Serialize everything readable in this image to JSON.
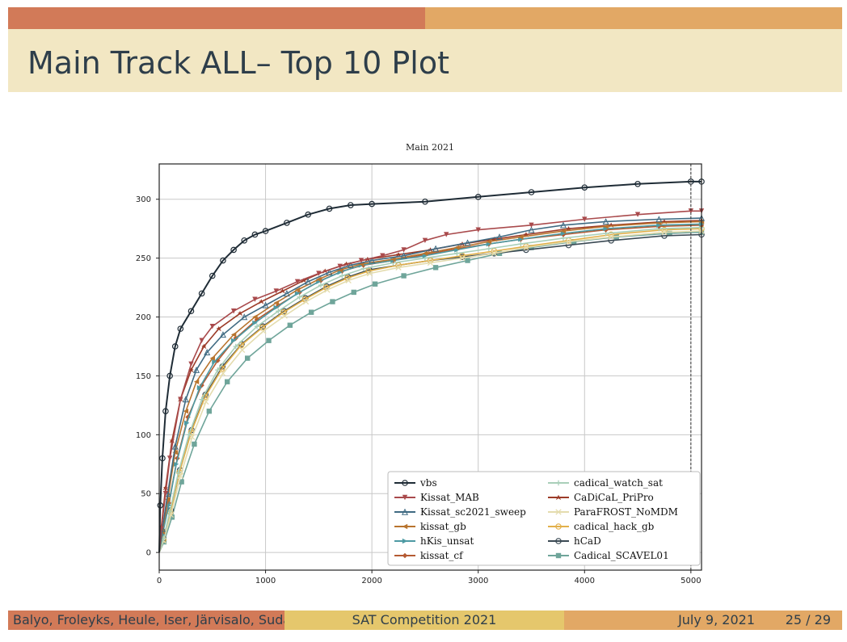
{
  "slide": {
    "title": "Main Track ALL– Top 10 Plot",
    "footer_authors": "Balyo, Froleyks, Heule, Iser, Järvisalo, Suda",
    "footer_event": "SAT Competition 2021",
    "footer_date": "July 9, 2021",
    "footer_page": "25 / 29"
  },
  "chart_data": {
    "type": "line",
    "title": "Main 2021",
    "xlabel": "",
    "ylabel": "",
    "xlim": [
      0,
      5100
    ],
    "ylim": [
      -15,
      330
    ],
    "x_ticks": [
      0,
      1000,
      2000,
      3000,
      4000,
      5000
    ],
    "y_ticks": [
      0,
      50,
      100,
      150,
      200,
      250,
      300
    ],
    "grid": true,
    "timeout_line_x": 5000,
    "legend_position": "lower-right",
    "series": [
      {
        "name": "vbs",
        "color": "#1f2c36",
        "marker": "o",
        "points": [
          [
            0,
            0
          ],
          [
            10,
            40
          ],
          [
            30,
            80
          ],
          [
            60,
            120
          ],
          [
            100,
            150
          ],
          [
            150,
            175
          ],
          [
            200,
            190
          ],
          [
            300,
            205
          ],
          [
            400,
            220
          ],
          [
            500,
            235
          ],
          [
            600,
            248
          ],
          [
            700,
            257
          ],
          [
            800,
            265
          ],
          [
            900,
            270
          ],
          [
            1000,
            273
          ],
          [
            1200,
            280
          ],
          [
            1400,
            287
          ],
          [
            1600,
            292
          ],
          [
            1800,
            295
          ],
          [
            2000,
            296
          ],
          [
            2500,
            298
          ],
          [
            3000,
            302
          ],
          [
            3500,
            306
          ],
          [
            4000,
            310
          ],
          [
            4500,
            313
          ],
          [
            5000,
            315
          ],
          [
            5100,
            315
          ]
        ]
      },
      {
        "name": "Kissat_MAB",
        "color": "#a94a4c",
        "marker": "v",
        "points": [
          [
            0,
            0
          ],
          [
            20,
            20
          ],
          [
            60,
            50
          ],
          [
            100,
            80
          ],
          [
            200,
            130
          ],
          [
            300,
            160
          ],
          [
            400,
            180
          ],
          [
            500,
            192
          ],
          [
            700,
            205
          ],
          [
            900,
            215
          ],
          [
            1100,
            222
          ],
          [
            1300,
            230
          ],
          [
            1500,
            237
          ],
          [
            1700,
            243
          ],
          [
            1900,
            248
          ],
          [
            2100,
            252
          ],
          [
            2300,
            257
          ],
          [
            2500,
            265
          ],
          [
            2700,
            270
          ],
          [
            3000,
            274
          ],
          [
            3500,
            278
          ],
          [
            4000,
            283
          ],
          [
            4500,
            287
          ],
          [
            5000,
            290
          ],
          [
            5100,
            290
          ]
        ]
      },
      {
        "name": "Kissat_sc2021_sweep",
        "color": "#3f6a82",
        "marker": "^",
        "points": [
          [
            0,
            0
          ],
          [
            30,
            20
          ],
          [
            80,
            50
          ],
          [
            150,
            90
          ],
          [
            250,
            130
          ],
          [
            350,
            155
          ],
          [
            450,
            170
          ],
          [
            600,
            185
          ],
          [
            800,
            200
          ],
          [
            1000,
            210
          ],
          [
            1200,
            220
          ],
          [
            1400,
            230
          ],
          [
            1600,
            238
          ],
          [
            1800,
            244
          ],
          [
            2000,
            248
          ],
          [
            2300,
            252
          ],
          [
            2600,
            258
          ],
          [
            2900,
            263
          ],
          [
            3200,
            268
          ],
          [
            3500,
            274
          ],
          [
            3800,
            278
          ],
          [
            4200,
            281
          ],
          [
            4700,
            283
          ],
          [
            5100,
            284
          ]
        ]
      },
      {
        "name": "kissat_gb",
        "color": "#b8742e",
        "marker": "<",
        "points": [
          [
            0,
            0
          ],
          [
            30,
            18
          ],
          [
            80,
            45
          ],
          [
            150,
            85
          ],
          [
            250,
            120
          ],
          [
            350,
            145
          ],
          [
            500,
            165
          ],
          [
            700,
            185
          ],
          [
            900,
            200
          ],
          [
            1100,
            212
          ],
          [
            1300,
            223
          ],
          [
            1500,
            232
          ],
          [
            1700,
            240
          ],
          [
            1900,
            245
          ],
          [
            2200,
            249
          ],
          [
            2500,
            254
          ],
          [
            2800,
            259
          ],
          [
            3100,
            264
          ],
          [
            3400,
            268
          ],
          [
            3800,
            273
          ],
          [
            4200,
            277
          ],
          [
            4700,
            280
          ],
          [
            5100,
            281
          ]
        ]
      },
      {
        "name": "hKis_unsat",
        "color": "#4d9aa3",
        "marker": ">",
        "points": [
          [
            0,
            0
          ],
          [
            30,
            15
          ],
          [
            90,
            40
          ],
          [
            160,
            75
          ],
          [
            260,
            110
          ],
          [
            380,
            140
          ],
          [
            520,
            162
          ],
          [
            700,
            180
          ],
          [
            900,
            195
          ],
          [
            1100,
            208
          ],
          [
            1300,
            220
          ],
          [
            1500,
            230
          ],
          [
            1700,
            238
          ],
          [
            1900,
            244
          ],
          [
            2200,
            248
          ],
          [
            2500,
            252
          ],
          [
            2800,
            257
          ],
          [
            3100,
            262
          ],
          [
            3400,
            266
          ],
          [
            3800,
            271
          ],
          [
            4200,
            275
          ],
          [
            4700,
            278
          ],
          [
            5100,
            279
          ]
        ]
      },
      {
        "name": "kissat_cf",
        "color": "#b45a32",
        "marker": "D",
        "points": [
          [
            0,
            0
          ],
          [
            30,
            16
          ],
          [
            90,
            42
          ],
          [
            170,
            80
          ],
          [
            270,
            115
          ],
          [
            400,
            142
          ],
          [
            550,
            163
          ],
          [
            720,
            182
          ],
          [
            920,
            198
          ],
          [
            1120,
            210
          ],
          [
            1320,
            221
          ],
          [
            1520,
            231
          ],
          [
            1720,
            239
          ],
          [
            1920,
            244
          ],
          [
            2200,
            248
          ],
          [
            2500,
            253
          ],
          [
            2800,
            258
          ],
          [
            3100,
            262
          ],
          [
            3400,
            266
          ],
          [
            3800,
            270
          ],
          [
            4200,
            274
          ],
          [
            4700,
            277
          ],
          [
            5100,
            278
          ]
        ]
      },
      {
        "name": "cadical_watch_sat",
        "color": "#a9cfb9",
        "marker": "+",
        "points": [
          [
            0,
            0
          ],
          [
            40,
            12
          ],
          [
            100,
            35
          ],
          [
            180,
            68
          ],
          [
            280,
            100
          ],
          [
            400,
            130
          ],
          [
            550,
            155
          ],
          [
            720,
            175
          ],
          [
            920,
            192
          ],
          [
            1120,
            205
          ],
          [
            1320,
            217
          ],
          [
            1520,
            227
          ],
          [
            1720,
            235
          ],
          [
            1920,
            241
          ],
          [
            2200,
            246
          ],
          [
            2500,
            250
          ],
          [
            2800,
            254
          ],
          [
            3100,
            258
          ],
          [
            3400,
            262
          ],
          [
            3800,
            267
          ],
          [
            4200,
            271
          ],
          [
            4700,
            275
          ],
          [
            5100,
            276
          ]
        ]
      },
      {
        "name": "CaDiCaL_PriPro",
        "color": "#9c3b28",
        "marker": "*",
        "points": [
          [
            0,
            0
          ],
          [
            20,
            22
          ],
          [
            60,
            55
          ],
          [
            120,
            95
          ],
          [
            200,
            130
          ],
          [
            300,
            155
          ],
          [
            420,
            175
          ],
          [
            560,
            190
          ],
          [
            760,
            203
          ],
          [
            960,
            213
          ],
          [
            1160,
            222
          ],
          [
            1360,
            231
          ],
          [
            1560,
            239
          ],
          [
            1760,
            245
          ],
          [
            1960,
            249
          ],
          [
            2250,
            253
          ],
          [
            2550,
            257
          ],
          [
            2850,
            262
          ],
          [
            3150,
            266
          ],
          [
            3450,
            270
          ],
          [
            3850,
            275
          ],
          [
            4250,
            278
          ],
          [
            4750,
            281
          ],
          [
            5100,
            282
          ]
        ]
      },
      {
        "name": "ParaFROST_NoMDM",
        "color": "#e4dcae",
        "marker": "x",
        "points": [
          [
            0,
            0
          ],
          [
            40,
            10
          ],
          [
            110,
            32
          ],
          [
            200,
            65
          ],
          [
            310,
            98
          ],
          [
            440,
            128
          ],
          [
            600,
            152
          ],
          [
            780,
            172
          ],
          [
            980,
            188
          ],
          [
            1180,
            201
          ],
          [
            1380,
            213
          ],
          [
            1580,
            223
          ],
          [
            1780,
            231
          ],
          [
            1980,
            237
          ],
          [
            2250,
            242
          ],
          [
            2550,
            246
          ],
          [
            2850,
            250
          ],
          [
            3150,
            254
          ],
          [
            3450,
            259
          ],
          [
            3850,
            264
          ],
          [
            4250,
            268
          ],
          [
            4750,
            272
          ],
          [
            5100,
            273
          ]
        ]
      },
      {
        "name": "cadical_hack_gb",
        "color": "#e2b04a",
        "marker": "h",
        "points": [
          [
            0,
            0
          ],
          [
            40,
            11
          ],
          [
            105,
            34
          ],
          [
            190,
            68
          ],
          [
            300,
            102
          ],
          [
            430,
            132
          ],
          [
            590,
            156
          ],
          [
            770,
            176
          ],
          [
            970,
            191
          ],
          [
            1170,
            204
          ],
          [
            1370,
            215
          ],
          [
            1570,
            225
          ],
          [
            1770,
            233
          ],
          [
            1970,
            239
          ],
          [
            2250,
            244
          ],
          [
            2550,
            248
          ],
          [
            2850,
            252
          ],
          [
            3150,
            256
          ],
          [
            3450,
            260
          ],
          [
            3850,
            265
          ],
          [
            4250,
            270
          ],
          [
            4750,
            274
          ],
          [
            5100,
            275
          ]
        ]
      },
      {
        "name": "hCaD",
        "color": "#3b4a54",
        "marker": "o",
        "points": [
          [
            0,
            0
          ],
          [
            40,
            12
          ],
          [
            110,
            36
          ],
          [
            195,
            70
          ],
          [
            305,
            104
          ],
          [
            435,
            134
          ],
          [
            595,
            158
          ],
          [
            775,
            177
          ],
          [
            975,
            192
          ],
          [
            1175,
            205
          ],
          [
            1375,
            216
          ],
          [
            1575,
            226
          ],
          [
            1775,
            234
          ],
          [
            1975,
            240
          ],
          [
            2250,
            244
          ],
          [
            2550,
            248
          ],
          [
            2850,
            251
          ],
          [
            3150,
            254
          ],
          [
            3450,
            257
          ],
          [
            3850,
            261
          ],
          [
            4250,
            265
          ],
          [
            4750,
            269
          ],
          [
            5100,
            270
          ]
        ]
      },
      {
        "name": "Cadical_SCAVEL01",
        "color": "#6fa59a",
        "marker": "s",
        "points": [
          [
            0,
            0
          ],
          [
            45,
            9
          ],
          [
            120,
            30
          ],
          [
            210,
            60
          ],
          [
            330,
            92
          ],
          [
            470,
            120
          ],
          [
            640,
            145
          ],
          [
            830,
            165
          ],
          [
            1030,
            180
          ],
          [
            1230,
            193
          ],
          [
            1430,
            204
          ],
          [
            1630,
            213
          ],
          [
            1830,
            221
          ],
          [
            2030,
            228
          ],
          [
            2300,
            235
          ],
          [
            2600,
            242
          ],
          [
            2900,
            248
          ],
          [
            3200,
            254
          ],
          [
            3500,
            259
          ],
          [
            3900,
            264
          ],
          [
            4300,
            268
          ],
          [
            4800,
            271
          ],
          [
            5100,
            272
          ]
        ]
      }
    ]
  }
}
